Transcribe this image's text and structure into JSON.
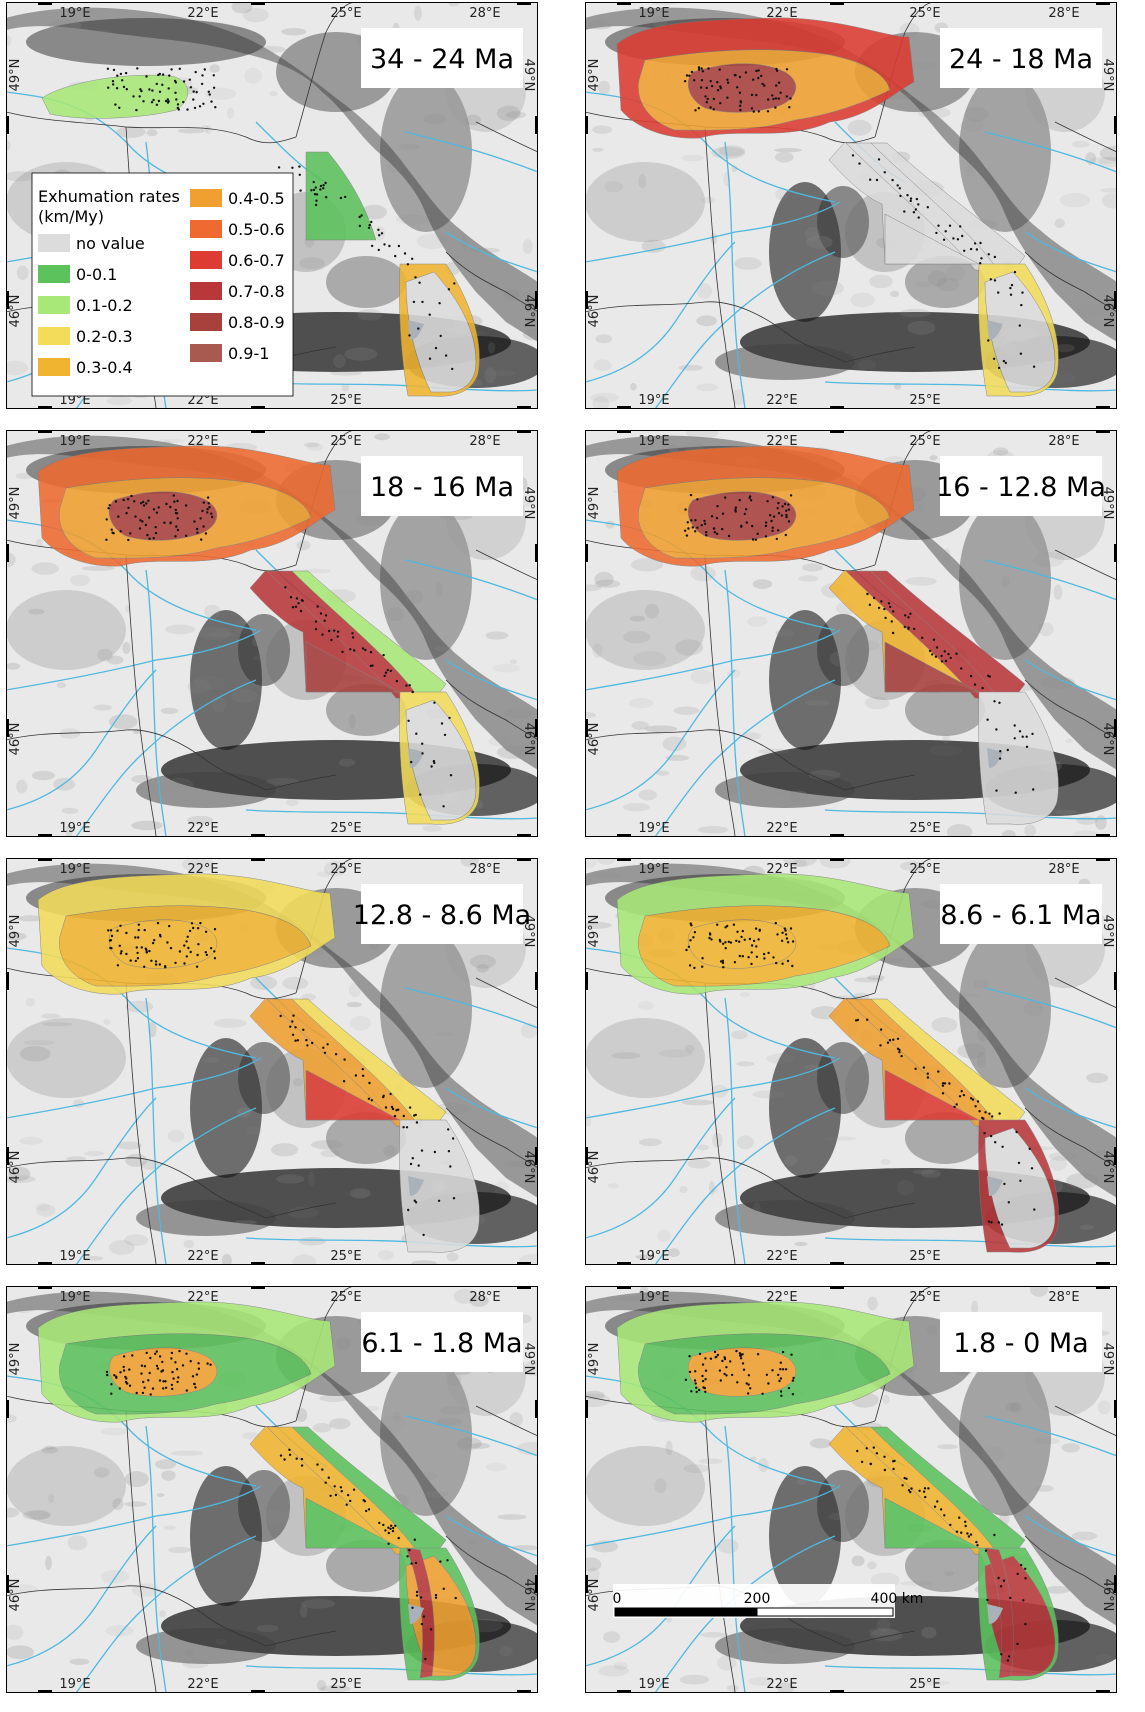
{
  "coordinates": {
    "lon_labels": [
      "19°E",
      "22°E",
      "25°E",
      "28°E"
    ],
    "lat_labels": [
      "49°N",
      "46°N"
    ]
  },
  "legend": {
    "title_line1": "Exhumation rates",
    "title_line2": "(km/My)",
    "items": [
      {
        "label": "no value",
        "color": "#dcdcdc"
      },
      {
        "label": "0-0.1",
        "color": "#5cc25c"
      },
      {
        "label": "0.1-0.2",
        "color": "#a8e878"
      },
      {
        "label": "0.2-0.3",
        "color": "#f2dc5a"
      },
      {
        "label": "0.3-0.4",
        "color": "#f0b430"
      },
      {
        "label": "0.4-0.5",
        "color": "#f0a030"
      },
      {
        "label": "0.5-0.6",
        "color": "#ee6a30"
      },
      {
        "label": "0.6-0.7",
        "color": "#dc3c32"
      },
      {
        "label": "0.7-0.8",
        "color": "#b8383a"
      },
      {
        "label": "0.8-0.9",
        "color": "#a8403c"
      },
      {
        "label": "0.9-1",
        "color": "#a85a50"
      }
    ]
  },
  "scale_bar": {
    "labels": [
      "0",
      "200",
      "400 km"
    ]
  },
  "panels": [
    {
      "period": "34 - 24 Ma",
      "W_outer": 1,
      "W_inner": 1,
      "W_core": 1,
      "E_inner": 0,
      "E_mid": 0,
      "E_outer": 0,
      "E_wedge": 0,
      "S_outer": 0,
      "S_inner": 4,
      "S_core": 4,
      "S_lake": 4
    },
    {
      "period": "24 - 18 Ma",
      "W_outer": 7,
      "W_inner": 5,
      "W_core": 9,
      "E_inner": 0,
      "E_mid": 0,
      "E_outer": 0,
      "E_wedge": 0,
      "S_outer": 0,
      "S_inner": 3,
      "S_core": 3,
      "S_lake": 3
    },
    {
      "period": "18 - 16 Ma",
      "W_outer": 6,
      "W_inner": 5,
      "W_core": 9,
      "E_inner": 8,
      "E_mid": 8,
      "E_outer": 2,
      "E_wedge": 9,
      "S_outer": 0,
      "S_inner": 3,
      "S_core": 3,
      "S_lake": 3
    },
    {
      "period": "16 - 12.8 Ma",
      "W_outer": 6,
      "W_inner": 5,
      "W_core": 9,
      "E_inner": 4,
      "E_mid": 8,
      "E_outer": 8,
      "E_wedge": 9,
      "S_outer": 0,
      "S_inner": 0,
      "S_core": 0,
      "S_lake": 0
    },
    {
      "period": "12.8 - 8.6 Ma",
      "W_outer": 3,
      "W_inner": 4,
      "W_core": 4,
      "E_inner": 5,
      "E_mid": 5,
      "E_outer": 3,
      "E_wedge": 7,
      "S_outer": 0,
      "S_inner": 0,
      "S_core": 0,
      "S_lake": 0
    },
    {
      "period": "8.6 - 6.1 Ma",
      "W_outer": 2,
      "W_inner": 4,
      "W_core": 4,
      "E_inner": 5,
      "E_mid": 5,
      "E_outer": 3,
      "E_wedge": 7,
      "S_outer": 0,
      "S_inner": 8,
      "S_core": 8,
      "S_lake": 8
    },
    {
      "period": "6.1 - 1.8 Ma",
      "W_outer": 2,
      "W_inner": 1,
      "W_core": 5,
      "E_inner": 4,
      "E_mid": 4,
      "E_outer": 1,
      "E_wedge": 1,
      "S_outer": 5,
      "S_inner": 1,
      "S_core": 8,
      "S_lake": 1
    },
    {
      "period": "1.8 - 0 Ma",
      "W_outer": 2,
      "W_inner": 1,
      "W_core": 5,
      "E_inner": 4,
      "E_mid": 4,
      "E_outer": 1,
      "E_wedge": 1,
      "S_outer": 8,
      "S_inner": 1,
      "S_core": 8,
      "S_lake": 1
    }
  ]
}
